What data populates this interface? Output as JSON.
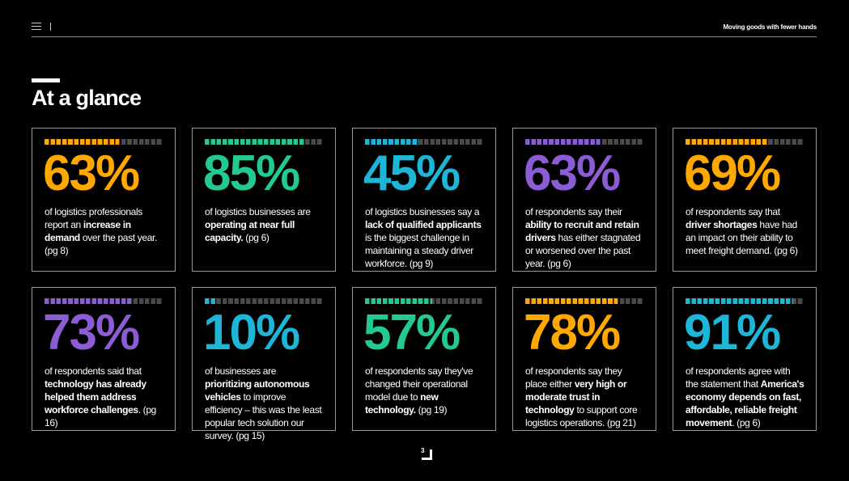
{
  "header": {
    "menu_icon": "hamburger-icon",
    "doc_title": "Moving goods with fewer hands"
  },
  "page_title": "At a glance",
  "colors": {
    "orange": "#FFA800",
    "green": "#24C98E",
    "cyan": "#1DB6D6",
    "purple": "#8B5CD3",
    "track": "#4a4a4a"
  },
  "cards": [
    {
      "value": "63%",
      "percent": 63,
      "color": "#FFA800",
      "text": [
        {
          "t": "of logistics professionals report an "
        },
        {
          "t": "increase in demand",
          "b": true
        },
        {
          "t": " over the past year. (pg 8)"
        }
      ]
    },
    {
      "value": "85%",
      "percent": 85,
      "color": "#24C98E",
      "text": [
        {
          "t": "of logistics businesses are "
        },
        {
          "t": "operating at near full capacity.",
          "b": true
        },
        {
          "t": " (pg 6)"
        }
      ]
    },
    {
      "value": "45%",
      "percent": 45,
      "color": "#1DB6D6",
      "text": [
        {
          "t": "of logistics businesses say a "
        },
        {
          "t": "lack of qualified applicants",
          "b": true
        },
        {
          "t": " is the biggest challenge in maintaining a steady driver workforce. (pg 9)"
        }
      ]
    },
    {
      "value": "63%",
      "percent": 63,
      "color": "#8B5CD3",
      "text": [
        {
          "t": "of respondents say their "
        },
        {
          "t": "ability to recruit and retain drivers",
          "b": true
        },
        {
          "t": " has either stagnated or worsened over the past year. (pg 6)"
        }
      ]
    },
    {
      "value": "69%",
      "percent": 69,
      "color": "#FFA800",
      "text": [
        {
          "t": "of respondents say that "
        },
        {
          "t": "driver shortages",
          "b": true
        },
        {
          "t": " have had an impact on their ability to meet freight demand. (pg 6)"
        }
      ]
    },
    {
      "value": "73%",
      "percent": 73,
      "color": "#8B5CD3",
      "text": [
        {
          "t": "of respondents said that "
        },
        {
          "t": "technology has already helped them address workforce challenges",
          "b": true
        },
        {
          "t": ". (pg 16)"
        }
      ]
    },
    {
      "value": "10%",
      "percent": 10,
      "color": "#1DB6D6",
      "text": [
        {
          "t": "of businesses are "
        },
        {
          "t": "prioritizing autonomous vehicles",
          "b": true
        },
        {
          "t": " to improve efficiency – this was the least popular tech solution our survey. (pg 15)"
        }
      ]
    },
    {
      "value": "57%",
      "percent": 57,
      "color": "#24C98E",
      "text": [
        {
          "t": "of respondents say they've changed their operational model due to "
        },
        {
          "t": "new technology.",
          "b": true
        },
        {
          "t": " (pg 19)"
        }
      ]
    },
    {
      "value": "78%",
      "percent": 78,
      "color": "#FFA800",
      "text": [
        {
          "t": "of respondents say they place either "
        },
        {
          "t": "very high or moderate trust in technology",
          "b": true
        },
        {
          "t": " to support core logistics operations. (pg 21)"
        }
      ]
    },
    {
      "value": "91%",
      "percent": 91,
      "color": "#1DB6D6",
      "text": [
        {
          "t": "of respondents agree with the statement that "
        },
        {
          "t": "America's economy depends on fast, affordable, reliable freight movement",
          "b": true
        },
        {
          "t": ". (pg 6)"
        }
      ]
    }
  ],
  "page_number": "3"
}
